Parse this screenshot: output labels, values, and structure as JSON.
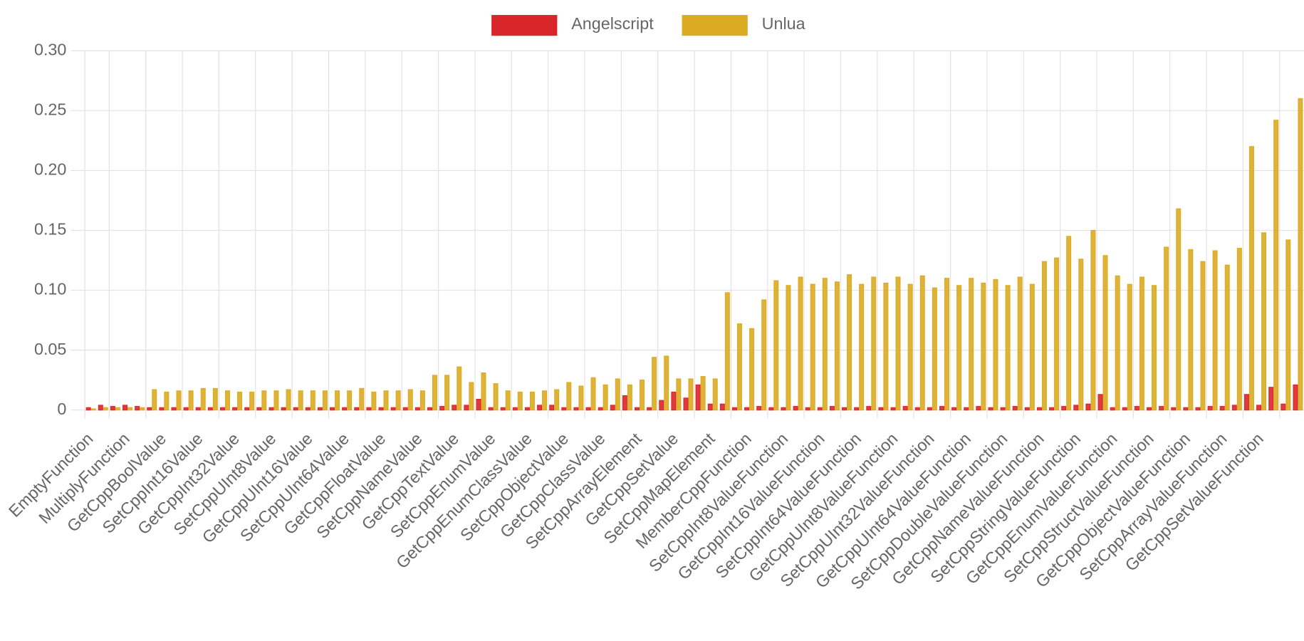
{
  "chart_data": {
    "type": "bar",
    "categories": [
      "EmptyFunction",
      null,
      null,
      "MultiplyFunction",
      null,
      null,
      "GetCppBoolValue",
      null,
      null,
      "SetCppInt16Value",
      null,
      null,
      "GetCppInt32Value",
      null,
      null,
      "SetCppUInt8Value",
      null,
      null,
      "GetCppUInt16Value",
      null,
      null,
      "SetCppUInt64Value",
      null,
      null,
      "GetCppFloatValue",
      null,
      null,
      "SetCppNameValue",
      null,
      null,
      "GetCppTextValue",
      null,
      null,
      "SetCppEnumValue",
      null,
      null,
      "GetCppEnumClassValue",
      null,
      null,
      "SetCppObjectValue",
      null,
      null,
      "GetCppClassValue",
      null,
      null,
      "SetCppArrayElement",
      null,
      null,
      "GetCppSetValue",
      null,
      null,
      "SetCppMapElement",
      null,
      null,
      "MemberCppFunction",
      null,
      null,
      "SetCppInt8ValueFunction",
      null,
      null,
      "GetCppInt16ValueFunction",
      null,
      null,
      "SetCppInt64ValueFunction",
      null,
      null,
      "GetCppUInt8ValueFunction",
      null,
      null,
      "SetCppUInt32ValueFunction",
      null,
      null,
      "GetCppUInt64ValueFunction",
      null,
      null,
      "SetCppDoubleValueFunction",
      null,
      null,
      "GetCppNameValueFunction",
      null,
      null,
      "SetCppStringValueFunction",
      null,
      null,
      "GetCppEnumValueFunction",
      null,
      null,
      "SetCppStructValueFunction",
      null,
      null,
      "GetCppObjectValueFunction",
      null,
      null,
      "SetCppArrayValueFunction",
      null,
      null,
      "GetCppSetValueFunction",
      null,
      null,
      null
    ],
    "series": [
      {
        "name": "Angelscript",
        "color": "#d9262b",
        "values": [
          0.002,
          0.004,
          0.003,
          0.004,
          0.003,
          0.002,
          0.002,
          0.002,
          0.002,
          0.002,
          0.002,
          0.002,
          0.002,
          0.002,
          0.002,
          0.002,
          0.002,
          0.002,
          0.002,
          0.002,
          0.002,
          0.002,
          0.002,
          0.002,
          0.002,
          0.002,
          0.002,
          0.002,
          0.002,
          0.003,
          0.004,
          0.004,
          0.009,
          0.002,
          0.002,
          0.002,
          0.002,
          0.004,
          0.004,
          0.002,
          0.002,
          0.002,
          0.002,
          0.004,
          0.012,
          0.002,
          0.002,
          0.008,
          0.015,
          0.01,
          0.021,
          0.005,
          0.005,
          0.002,
          0.002,
          0.003,
          0.002,
          0.002,
          0.003,
          0.002,
          0.002,
          0.003,
          0.002,
          0.002,
          0.003,
          0.002,
          0.002,
          0.003,
          0.002,
          0.002,
          0.003,
          0.002,
          0.002,
          0.003,
          0.002,
          0.002,
          0.003,
          0.002,
          0.002,
          0.002,
          0.003,
          0.004,
          0.005,
          0.013,
          0.002,
          0.002,
          0.003,
          0.002,
          0.003,
          0.002,
          0.002,
          0.002,
          0.003,
          0.003,
          0.004,
          0.013,
          0.004,
          0.019,
          0.005,
          0.021
        ]
      },
      {
        "name": "Unlua",
        "color": "#dbab22",
        "values": [
          0.001,
          0.002,
          0.002,
          0.002,
          0.002,
          0.017,
          0.015,
          0.016,
          0.016,
          0.018,
          0.018,
          0.016,
          0.015,
          0.015,
          0.016,
          0.016,
          0.017,
          0.016,
          0.016,
          0.016,
          0.016,
          0.016,
          0.018,
          0.015,
          0.016,
          0.016,
          0.017,
          0.016,
          0.029,
          0.029,
          0.036,
          0.023,
          0.031,
          0.022,
          0.016,
          0.015,
          0.015,
          0.016,
          0.017,
          0.023,
          0.02,
          0.027,
          0.021,
          0.026,
          0.021,
          0.025,
          0.044,
          0.045,
          0.026,
          0.026,
          0.028,
          0.026,
          0.098,
          0.072,
          0.068,
          0.092,
          0.108,
          0.104,
          0.111,
          0.105,
          0.11,
          0.107,
          0.113,
          0.105,
          0.111,
          0.106,
          0.111,
          0.105,
          0.112,
          0.102,
          0.11,
          0.104,
          0.11,
          0.106,
          0.109,
          0.104,
          0.111,
          0.105,
          0.124,
          0.127,
          0.145,
          0.126,
          0.15,
          0.129,
          0.112,
          0.105,
          0.111,
          0.104,
          0.136,
          0.168,
          0.134,
          0.124,
          0.133,
          0.121,
          0.135,
          0.22,
          0.148,
          0.242,
          0.142,
          0.26
        ]
      }
    ],
    "ylim": [
      0,
      0.3
    ],
    "yticks": [
      0,
      0.05,
      {
        "value": 0.1,
        "label": "0.10"
      },
      0.15,
      {
        "value": 0.2,
        "label": "0.20"
      },
      0.25,
      {
        "value": 0.3,
        "label": "0.30"
      }
    ],
    "grid": true,
    "legend": "top"
  }
}
